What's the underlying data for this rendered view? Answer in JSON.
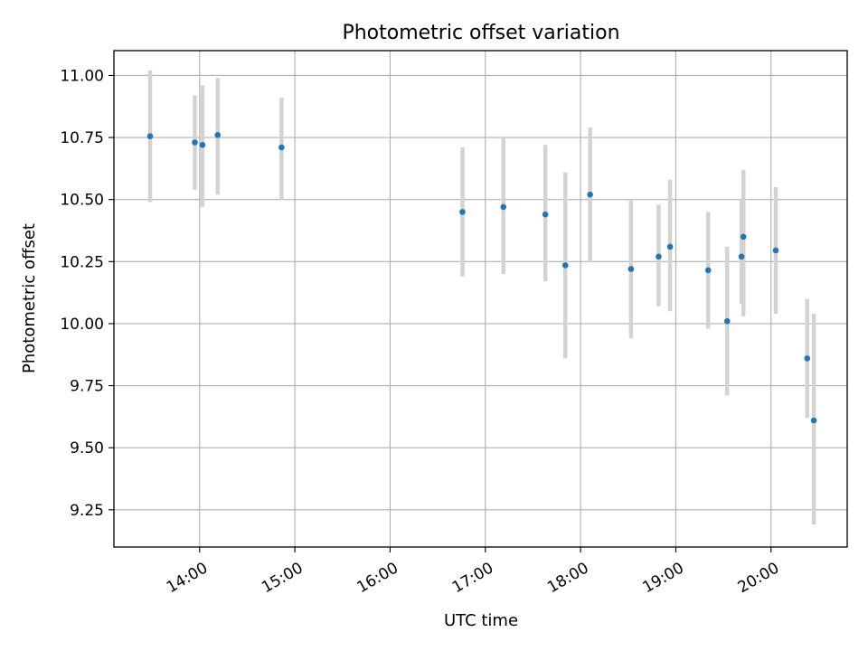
{
  "chart_data": {
    "type": "scatter",
    "title": "Photometric offset variation",
    "xlabel": "UTC time",
    "ylabel": "Photometric offset",
    "x_unit": "UTC time of day (hours)",
    "xlim": [
      13.1,
      20.8
    ],
    "ylim": [
      9.1,
      11.1
    ],
    "x_ticks": [
      {
        "value": 14,
        "label": "14:00"
      },
      {
        "value": 15,
        "label": "15:00"
      },
      {
        "value": 16,
        "label": "16:00"
      },
      {
        "value": 17,
        "label": "17:00"
      },
      {
        "value": 18,
        "label": "18:00"
      },
      {
        "value": 19,
        "label": "19:00"
      },
      {
        "value": 20,
        "label": "20:00"
      }
    ],
    "y_ticks": [
      {
        "value": 9.25,
        "label": "9.25"
      },
      {
        "value": 9.5,
        "label": "9.50"
      },
      {
        "value": 9.75,
        "label": "9.75"
      },
      {
        "value": 10.0,
        "label": "10.00"
      },
      {
        "value": 10.25,
        "label": "10.25"
      },
      {
        "value": 10.5,
        "label": "10.50"
      },
      {
        "value": 10.75,
        "label": "10.75"
      },
      {
        "value": 11.0,
        "label": "11.00"
      }
    ],
    "grid": true,
    "colors": {
      "point": "#1f77b4",
      "errorbar": "#d3d3d3",
      "grid": "#b0b0b0"
    },
    "points": [
      {
        "x": 13.48,
        "y": 10.755,
        "ylow": 10.49,
        "yhigh": 11.02
      },
      {
        "x": 13.95,
        "y": 10.73,
        "ylow": 10.54,
        "yhigh": 10.92
      },
      {
        "x": 14.03,
        "y": 10.72,
        "ylow": 10.47,
        "yhigh": 10.96
      },
      {
        "x": 14.19,
        "y": 10.76,
        "ylow": 10.52,
        "yhigh": 10.99
      },
      {
        "x": 14.86,
        "y": 10.71,
        "ylow": 10.5,
        "yhigh": 10.91
      },
      {
        "x": 16.76,
        "y": 10.45,
        "ylow": 10.19,
        "yhigh": 10.71
      },
      {
        "x": 17.19,
        "y": 10.47,
        "ylow": 10.2,
        "yhigh": 10.75
      },
      {
        "x": 17.63,
        "y": 10.44,
        "ylow": 10.17,
        "yhigh": 10.72
      },
      {
        "x": 17.84,
        "y": 10.235,
        "ylow": 9.86,
        "yhigh": 10.61
      },
      {
        "x": 18.1,
        "y": 10.52,
        "ylow": 10.25,
        "yhigh": 10.79
      },
      {
        "x": 18.53,
        "y": 10.22,
        "ylow": 9.94,
        "yhigh": 10.5
      },
      {
        "x": 18.82,
        "y": 10.27,
        "ylow": 10.07,
        "yhigh": 10.48
      },
      {
        "x": 18.94,
        "y": 10.31,
        "ylow": 10.05,
        "yhigh": 10.58
      },
      {
        "x": 19.34,
        "y": 10.215,
        "ylow": 9.98,
        "yhigh": 10.45
      },
      {
        "x": 19.54,
        "y": 10.01,
        "ylow": 9.71,
        "yhigh": 10.31
      },
      {
        "x": 19.69,
        "y": 10.27,
        "ylow": 10.08,
        "yhigh": 10.5
      },
      {
        "x": 19.71,
        "y": 10.35,
        "ylow": 10.03,
        "yhigh": 10.62
      },
      {
        "x": 20.05,
        "y": 10.295,
        "ylow": 10.04,
        "yhigh": 10.55
      },
      {
        "x": 20.38,
        "y": 9.86,
        "ylow": 9.62,
        "yhigh": 10.1
      },
      {
        "x": 20.45,
        "y": 9.61,
        "ylow": 9.19,
        "yhigh": 10.04
      }
    ]
  }
}
